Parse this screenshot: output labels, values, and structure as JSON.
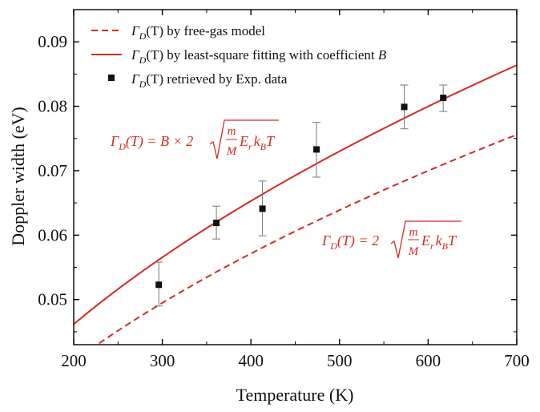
{
  "colors": {
    "line": "#d42a20",
    "marker": "#111111",
    "errorbar": "#777777",
    "axis": "#000000"
  },
  "chart_data": {
    "type": "scatter",
    "title": "",
    "xlabel": "Temperature (K)",
    "ylabel": "Doppler width (eV)",
    "xlim": [
      200,
      700
    ],
    "ylim": [
      0.043,
      0.095
    ],
    "xticks": [
      200,
      300,
      400,
      500,
      600,
      700
    ],
    "xtick_labels": [
      "200",
      "300",
      "400",
      "500",
      "600",
      "700"
    ],
    "yticks": [
      0.05,
      0.06,
      0.07,
      0.08,
      0.09
    ],
    "ytick_labels": [
      "0.05",
      "0.06",
      "0.07",
      "0.08",
      "0.09"
    ],
    "legend": {
      "position": "top-left",
      "entries": [
        {
          "symbol": "Γ",
          "sub": "D",
          "text": "(T) by free-gas model",
          "emph": "",
          "style": "dashed-line"
        },
        {
          "symbol": "Γ",
          "sub": "D",
          "text": "(T) by least-square fitting with coefficient ",
          "emph": "B",
          "style": "solid-line"
        },
        {
          "symbol": "Γ",
          "sub": "D",
          "text": "(T) retrieved by Exp. data",
          "emph": "",
          "style": "square-marker"
        }
      ]
    },
    "series": [
      {
        "name": "Γ_D(T) by free-gas model",
        "kind": "curve",
        "style": "dashed",
        "model": "a*sqrt(T)",
        "coefficient": 0.002857
      },
      {
        "name": "Γ_D(T) by least-square fitting with coefficient B",
        "kind": "curve",
        "style": "solid",
        "model": "a*sqrt(T)",
        "coefficient": 0.003265
      },
      {
        "name": "Γ_D(T) retrieved by Exp. data",
        "kind": "points",
        "x": [
          296,
          361,
          413,
          474,
          573,
          617
        ],
        "y": [
          0.0523,
          0.0619,
          0.0641,
          0.0733,
          0.0799,
          0.0813
        ],
        "err_upper": [
          0.0558,
          0.0645,
          0.0684,
          0.0775,
          0.0833,
          0.0833
        ],
        "err_lower": [
          0.049,
          0.0594,
          0.0599,
          0.069,
          0.0765,
          0.0792
        ]
      }
    ],
    "annotations": [
      {
        "id": "fit",
        "lhs": "Γ",
        "sub": "D",
        "arg": "(T) = ",
        "rest": "B × 2",
        "frac_num": "m",
        "frac_den": "M",
        "tail_main": "E",
        "tail_sub1": "r",
        "tail_mid": "k",
        "tail_sub2": "B",
        "tail_end": "T"
      },
      {
        "id": "free-gas",
        "lhs": "Γ",
        "sub": "D",
        "arg": "(T) = ",
        "rest": "2",
        "frac_num": "m",
        "frac_den": "M",
        "tail_main": "E",
        "tail_sub1": "r",
        "tail_mid": "k",
        "tail_sub2": "B",
        "tail_end": "T"
      }
    ]
  }
}
